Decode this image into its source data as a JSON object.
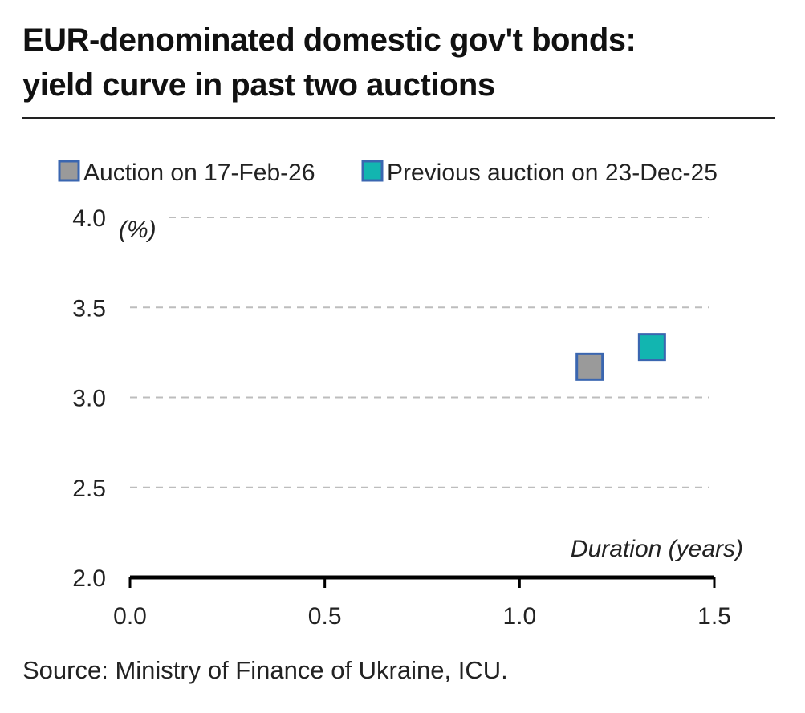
{
  "title_line1": "EUR-denominated domestic gov't bonds:",
  "title_line2": "yield curve in past two auctions",
  "source": "Source: Ministry of Finance of Ukraine, ICU.",
  "chart_data": {
    "type": "scatter",
    "title": "EUR-denominated domestic gov't bonds: yield curve in past two auctions",
    "xlabel": "Duration (years)",
    "ylabel": "(%)",
    "xlim": [
      0,
      1.5
    ],
    "ylim": [
      2.0,
      4.0
    ],
    "x_ticks": [
      "0.0",
      "0.5",
      "1.0",
      "1.5"
    ],
    "y_ticks": [
      "2.0",
      "2.5",
      "3.0",
      "3.5",
      "4.0"
    ],
    "grid": "horizontal dashed",
    "legend_position": "top",
    "series": [
      {
        "name": "Auction on 17-Feb-26",
        "color": "#9a9a9a",
        "edge": "#3a66b0",
        "points": [
          {
            "x": 1.18,
            "y": 3.17
          }
        ]
      },
      {
        "name": "Previous auction on 23-Dec-25",
        "color": "#12b5b0",
        "edge": "#3a66b0",
        "points": [
          {
            "x": 1.34,
            "y": 3.28
          }
        ]
      }
    ]
  }
}
